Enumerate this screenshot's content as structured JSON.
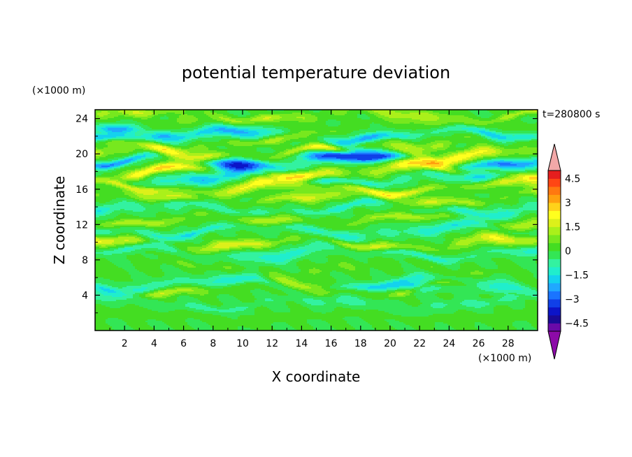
{
  "chart_data": {
    "type": "heatmap",
    "title": "potential temperature deviation",
    "xlabel": "X coordinate",
    "ylabel": "Z coordinate",
    "x_unit": "(×1000 m)",
    "y_unit": "(×1000 m)",
    "time_label": "t=280800 s",
    "xlim": [
      0,
      30
    ],
    "ylim": [
      0,
      25
    ],
    "x_ticks": [
      "2",
      "4",
      "6",
      "8",
      "10",
      "12",
      "14",
      "16",
      "18",
      "20",
      "22",
      "24",
      "26",
      "28"
    ],
    "y_ticks": [
      "4",
      "8",
      "12",
      "16",
      "20",
      "24"
    ],
    "colorbar": {
      "levels": [
        -5,
        -4.5,
        -4,
        -3.5,
        -3,
        -2.5,
        -2,
        -1.5,
        -1,
        -0.5,
        0,
        0.5,
        1,
        1.5,
        2,
        2.5,
        3,
        3.5,
        4,
        4.5,
        5
      ],
      "tick_labels": [
        "4.5",
        "3",
        "1.5",
        "0",
        "−1.5",
        "−3",
        "−4.5"
      ],
      "colors_low_to_high": [
        "#6a0aa8",
        "#1a0a96",
        "#0c14c8",
        "#1040e8",
        "#1a74ff",
        "#20a8ff",
        "#14d2ee",
        "#20eecc",
        "#33f2a0",
        "#33e655",
        "#44dd22",
        "#77e81e",
        "#aaf01a",
        "#dcf01a",
        "#ffff1e",
        "#ffd21a",
        "#ffa00f",
        "#ff7810",
        "#ff4614",
        "#e61e1e"
      ],
      "under_color": "#8c0aa8",
      "over_color": "#f2a8a8"
    },
    "bands": [
      {
        "z": 1.5,
        "value": 0.2,
        "amp": 0.35
      },
      {
        "z": 3.0,
        "value": -0.5,
        "amp": 0.4
      },
      {
        "z": 4.8,
        "value": 0.9,
        "amp": 0.6
      },
      {
        "z": 5.2,
        "value": -1.1,
        "amp": 0.5
      },
      {
        "z": 7.0,
        "value": 0.3,
        "amp": 0.5
      },
      {
        "z": 8.8,
        "value": -0.9,
        "amp": 0.5
      },
      {
        "z": 9.8,
        "value": 1.2,
        "amp": 0.6
      },
      {
        "z": 11.3,
        "value": -1.0,
        "amp": 0.5
      },
      {
        "z": 12.5,
        "value": 0.9,
        "amp": 0.5
      },
      {
        "z": 13.8,
        "value": -0.9,
        "amp": 0.5
      },
      {
        "z": 14.9,
        "value": 1.0,
        "amp": 0.6
      },
      {
        "z": 16.2,
        "value": 1.4,
        "amp": 0.6
      },
      {
        "z": 17.2,
        "value": -1.2,
        "amp": 0.5
      },
      {
        "z": 18.1,
        "value": 1.7,
        "amp": 0.6
      },
      {
        "z": 19.1,
        "value": -1.6,
        "amp": 0.6
      },
      {
        "z": 20.0,
        "value": 1.5,
        "amp": 0.6
      },
      {
        "z": 21.2,
        "value": 0.8,
        "amp": 0.6
      },
      {
        "z": 22.1,
        "value": -1.4,
        "amp": 0.6
      },
      {
        "z": 23.2,
        "value": 0.4,
        "amp": 0.5
      },
      {
        "z": 24.4,
        "value": 0.9,
        "amp": 0.5
      }
    ],
    "features": [
      {
        "x": 18.2,
        "z": 20.1,
        "value": -4.0
      },
      {
        "x": 15.5,
        "z": 19.8,
        "value": -2.4
      },
      {
        "x": 9.5,
        "z": 18.6,
        "value": -3.0
      },
      {
        "x": 1.5,
        "z": 22.8,
        "value": -2.6
      },
      {
        "x": 4.5,
        "z": 22.0,
        "value": -2.0
      },
      {
        "x": 22.0,
        "z": 5.0,
        "value": -1.8
      }
    ]
  }
}
